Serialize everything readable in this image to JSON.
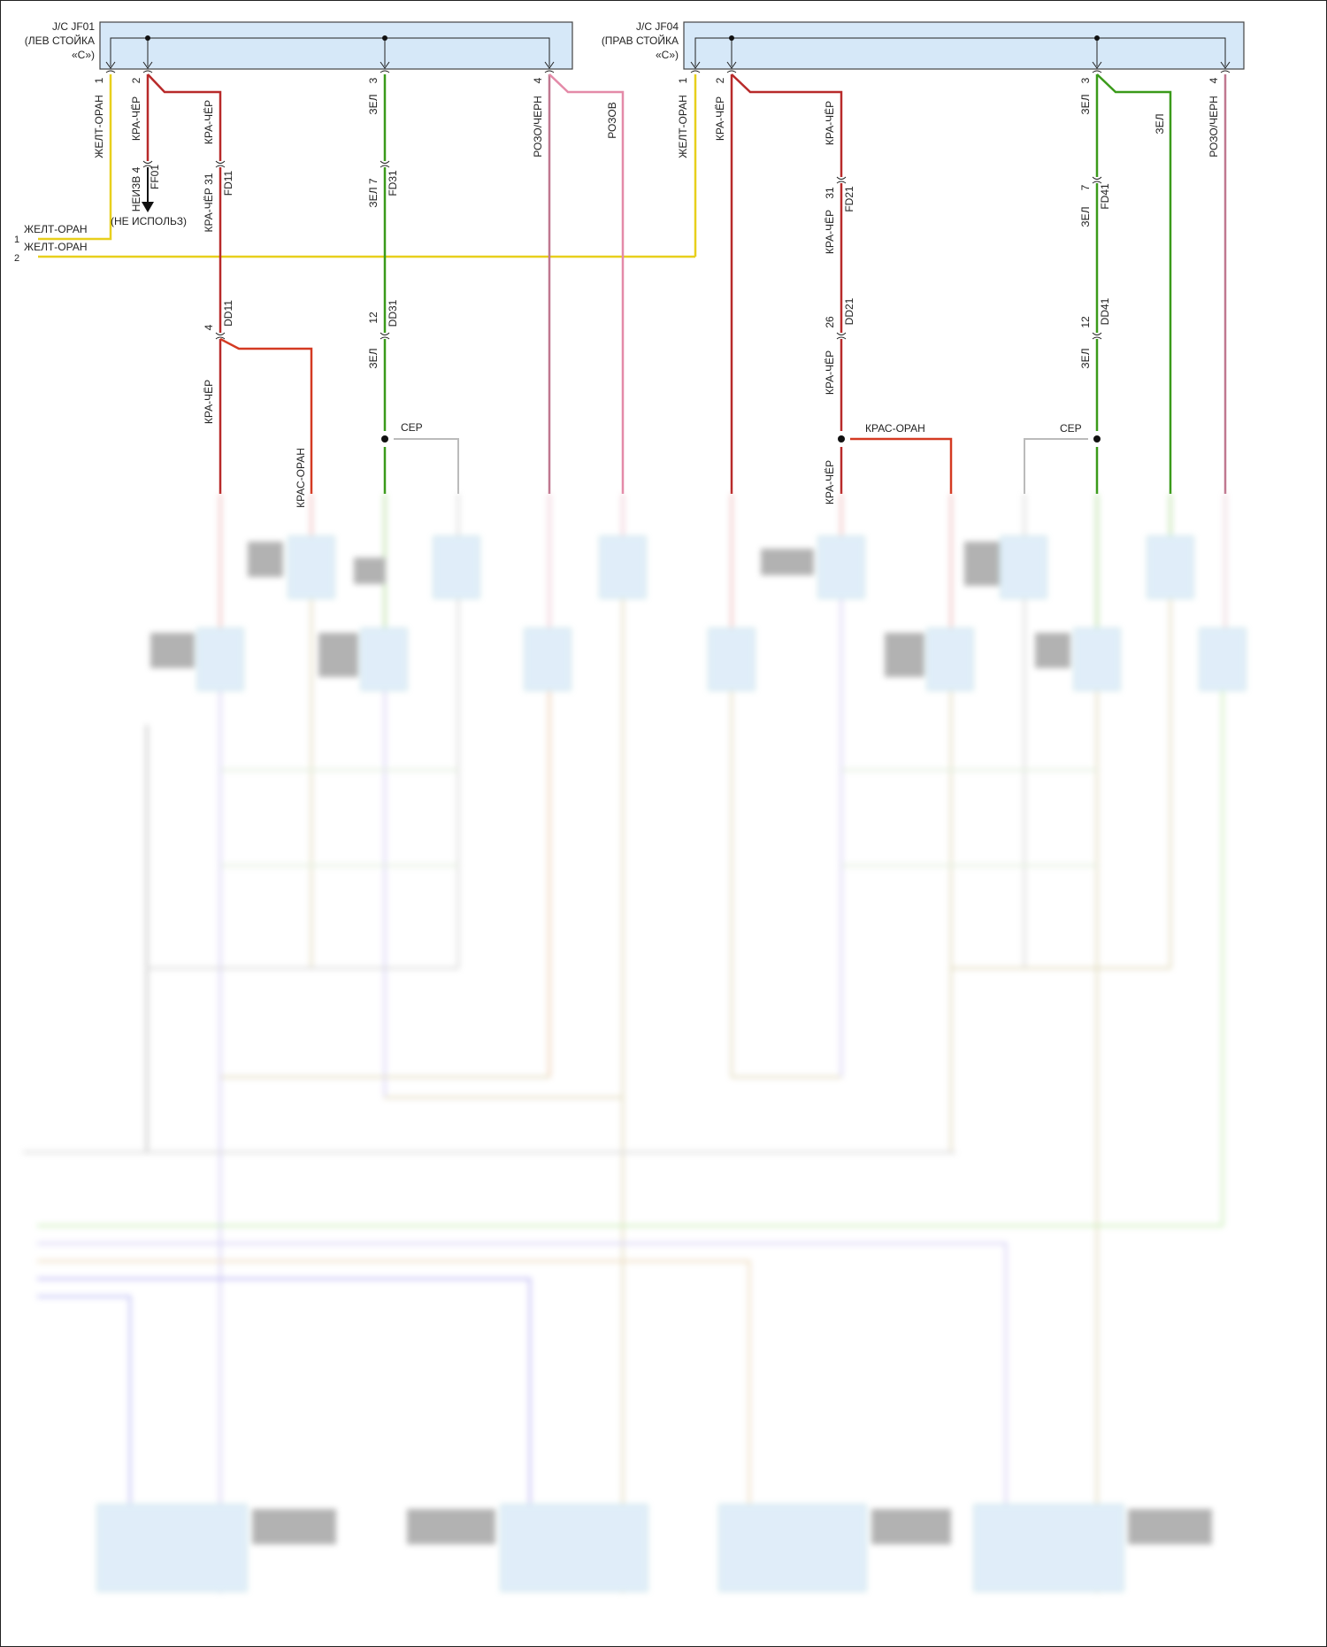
{
  "junction_left": {
    "line1": "J/C JF01",
    "line2": "(ЛЕВ СТОЙКА",
    "line3": "«С»)"
  },
  "junction_right": {
    "line1": "J/C JF04",
    "line2": "(ПРАВ СТОЙКА",
    "line3": "«С»)"
  },
  "left": {
    "pin1": "1",
    "pin2": "2",
    "pin3": "3",
    "pin4": "4",
    "w_pin1": "ЖЕЛТ-ОРАН",
    "w_pin2": "КРА-ЧЁР",
    "w_fd11_top": "КРА-ЧЁР",
    "w_pin3": "ЗЕЛ",
    "w_pin4": "РОЗО/ЧЕРН",
    "w_rozov": "РОЗОВ",
    "ff01_pin": "НЕИЗВ 4",
    "ff01": "FF01",
    "unused": "(НЕ ИСПОЛЬЗ)",
    "fd11_pin": "КРА-ЧЁР  31",
    "fd11": "FD11",
    "fd31_pin": "ЗЕЛ  7",
    "fd31": "FD31",
    "dd11_pin": "4",
    "dd11": "DD11",
    "dd31_pin": "12",
    "dd31": "DD31",
    "w_dd11_below": "КРА-ЧЁР",
    "w_dd31_below": "ЗЕЛ",
    "w_branch": "КРАС-ОРАН",
    "ser": "СЕР",
    "in1_label": "ЖЕЛТ-ОРАН",
    "in1_num": "1",
    "in2_label": "ЖЕЛТ-ОРАН",
    "in2_num": "2"
  },
  "right": {
    "pin1": "1",
    "pin2": "2",
    "pin3": "3",
    "pin4": "4",
    "w_pin1": "ЖЕЛТ-ОРАН",
    "w_pin2": "КРА-ЧЁР",
    "w_fd21_top": "КРА-ЧЁР",
    "w_pin3": "ЗЕЛ",
    "w_zel2": "ЗЕЛ",
    "w_pin4": "РОЗО/ЧЕРН",
    "fd21_num": "31",
    "fd21_wire": "КРА-ЧЁР",
    "fd21": "FD21",
    "fd41_num": "7",
    "fd41_wire": "ЗЕЛ",
    "fd41": "FD41",
    "dd21_num": "26",
    "dd21": "DD21",
    "dd41_num": "12",
    "dd41": "DD41",
    "w_dd21_below": "КРА-ЧЁР",
    "w_dd41_below": "ЗЕЛ",
    "kras_oran": "КРАС-ОРАН",
    "ser": "СЕР",
    "w_bottom_cut": "КРА-ЧЁР"
  },
  "colors": {
    "red": "#b82a2a",
    "green": "#3a9a1a",
    "yellow": "#e8cf1c",
    "pink": "#e48aa8",
    "pink_dark": "#c07890",
    "gray": "#b8b8b8",
    "box_fill": "#d6e8f8",
    "orange_red": "#d43a22"
  }
}
